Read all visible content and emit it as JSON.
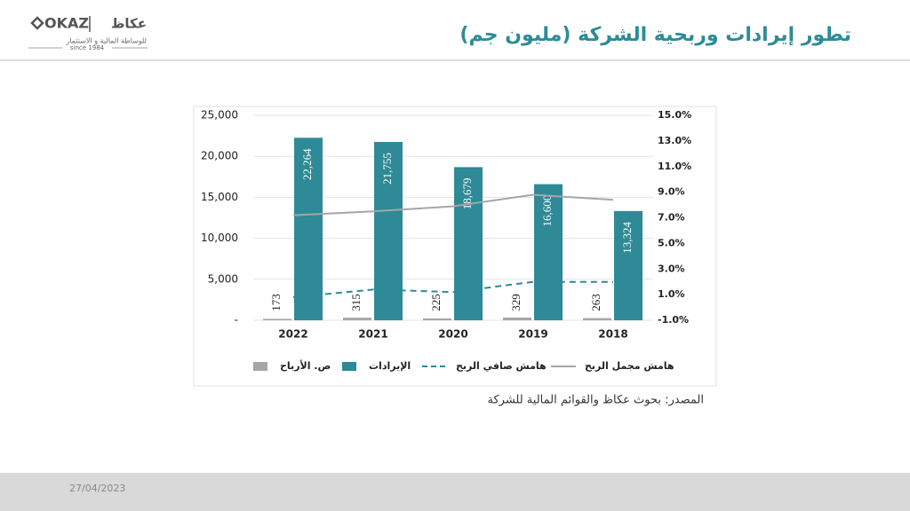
{
  "header": {
    "logo": {
      "latin": "OKAZ",
      "arabic": "عكاظ",
      "tagline": "للوساطة المالية و الاستثمار",
      "since": "since 1984"
    },
    "title": "تطور إيرادات وربحية الشركة (مليون جم)"
  },
  "chart_data": {
    "type": "bar",
    "categories": [
      "2022",
      "2021",
      "2020",
      "2019",
      "2018"
    ],
    "series": [
      {
        "name": "ص. الأرباح",
        "type": "bar",
        "color": "#a6a6a6",
        "values": [
          173,
          315,
          225,
          329,
          263
        ]
      },
      {
        "name": "الإيرادات",
        "type": "bar",
        "color": "#2e8a96",
        "values": [
          22264,
          21755,
          18679,
          16600,
          13324
        ],
        "value_labels": [
          "22,264",
          "21,755",
          "18,679",
          "16,600",
          "13,324"
        ]
      },
      {
        "name": "هامش صافي الربح",
        "type": "line",
        "dashed": true,
        "axis": "y2",
        "color": "#2e8a96",
        "values": [
          0.8,
          1.4,
          1.2,
          2.0,
          2.0
        ]
      },
      {
        "name": "هامش مجمل الربح",
        "type": "line",
        "axis": "y2",
        "color": "#a6a6a6",
        "values": [
          7.2,
          7.5,
          7.9,
          8.8,
          8.4
        ]
      }
    ],
    "ylim": [
      0,
      25000
    ],
    "yticks": [
      {
        "value": 0,
        "label": "-"
      },
      {
        "value": 5000,
        "label": "5,000"
      },
      {
        "value": 10000,
        "label": "10,000"
      },
      {
        "value": 15000,
        "label": "15,000"
      },
      {
        "value": 20000,
        "label": "20,000"
      },
      {
        "value": 25000,
        "label": "25,000"
      }
    ],
    "y2lim": [
      -1,
      15
    ],
    "y2ticks": [
      {
        "value": -1,
        "label": "-1.0%"
      },
      {
        "value": 1,
        "label": "1.0%"
      },
      {
        "value": 3,
        "label": "3.0%"
      },
      {
        "value": 5,
        "label": "5.0%"
      },
      {
        "value": 7,
        "label": "7.0%"
      },
      {
        "value": 9,
        "label": "9.0%"
      },
      {
        "value": 11,
        "label": "11.0%"
      },
      {
        "value": 13,
        "label": "13.0%"
      },
      {
        "value": 15,
        "label": "15.0%"
      }
    ],
    "grid": true
  },
  "source": "المصدر: بحوث عكاظ والقوائم المالية للشركة",
  "footer": {
    "date": "27/04/2023"
  }
}
